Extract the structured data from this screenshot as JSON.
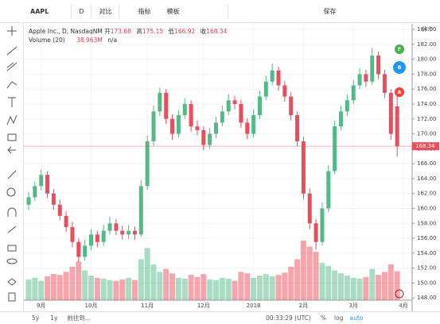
{
  "toolbar": {
    "symbol": "AAPL",
    "interval": "D",
    "compare": "对比",
    "indicators": "指标",
    "templates": "模板",
    "save": "保存"
  },
  "legend": {
    "title": "Apple Inc., D, NasdaqNM",
    "open": "开",
    "high": "高",
    "low": "低",
    "close": "收",
    "volume_name": "Volume (20)",
    "volume_extra": "n/a"
  },
  "axis_status": "休市",
  "markers": [
    "F",
    "B",
    "A"
  ],
  "bottom": {
    "ranges": [
      "5y",
      "1y"
    ],
    "goto": "前往到...",
    "time": "00:33:29 (UTC)",
    "percent": "%",
    "log": "log",
    "auto": "auto"
  },
  "chart_data": {
    "type": "candlestick",
    "up_color": "#53b987",
    "down_color": "#eb4d5c",
    "grid": true,
    "ylim": [
      147.7,
      184.75
    ],
    "yticks": [
      {
        "value": 148,
        "label": "148.00"
      },
      {
        "value": 150,
        "label": "150.00"
      },
      {
        "value": 152,
        "label": "152.00"
      },
      {
        "value": 154,
        "label": "154.00"
      },
      {
        "value": 156,
        "label": "156.00"
      },
      {
        "value": 158,
        "label": "158.00"
      },
      {
        "value": 160,
        "label": "160.00"
      },
      {
        "value": 162,
        "label": "162.00"
      },
      {
        "value": 164,
        "label": "164.00"
      },
      {
        "value": 166,
        "label": "166.00"
      },
      {
        "value": 168,
        "label": "168.00"
      },
      {
        "value": 170,
        "label": "170.00"
      },
      {
        "value": 172,
        "label": "172.00"
      },
      {
        "value": 174,
        "label": "174.00"
      },
      {
        "value": 176,
        "label": "176.00"
      },
      {
        "value": 178,
        "label": "178.00"
      },
      {
        "value": 180,
        "label": "180.00"
      },
      {
        "value": 182,
        "label": "182.00"
      },
      {
        "value": 184,
        "label": "184.00"
      }
    ],
    "xticks": [
      {
        "value": 2,
        "label": "9月"
      },
      {
        "value": 10,
        "label": "10月"
      },
      {
        "value": 19,
        "label": "11月"
      },
      {
        "value": 28,
        "label": "12月"
      },
      {
        "value": 36,
        "label": "2018"
      },
      {
        "value": 44,
        "label": "2月"
      },
      {
        "value": 52,
        "label": "3月"
      },
      {
        "value": 60,
        "label": "4月"
      }
    ],
    "series": [
      {
        "name": "AAPL",
        "values": [
          [
            160.5,
            162.2,
            159.8,
            161.5
          ],
          [
            161.5,
            163.6,
            161,
            163
          ],
          [
            163,
            165.2,
            162.4,
            164.5
          ],
          [
            164.5,
            165,
            161.4,
            162
          ],
          [
            162,
            162.6,
            159.8,
            160.5
          ],
          [
            160.5,
            161.2,
            158.4,
            159
          ],
          [
            159,
            159.6,
            156.8,
            157.5
          ],
          [
            157.5,
            158.2,
            154.8,
            155.5
          ],
          [
            155.5,
            156,
            152.8,
            153.5
          ],
          [
            153.5,
            155.8,
            153,
            155
          ],
          [
            155,
            157.2,
            154.4,
            156.5
          ],
          [
            156.5,
            157,
            154.8,
            155.5
          ],
          [
            155.5,
            157.8,
            155,
            157
          ],
          [
            157,
            158.9,
            156.5,
            158
          ],
          [
            158,
            158.6,
            156.4,
            157
          ],
          [
            157,
            157.7,
            155.8,
            156.5
          ],
          [
            156.5,
            157.8,
            155.9,
            157
          ],
          [
            157,
            157.6,
            155.8,
            156.5
          ],
          [
            156.5,
            163.8,
            156.2,
            163
          ],
          [
            163,
            169.8,
            162.5,
            169
          ],
          [
            169,
            173.8,
            168.4,
            173
          ],
          [
            173,
            176.2,
            172.4,
            175.5
          ],
          [
            175.5,
            176,
            171.3,
            172
          ],
          [
            172,
            172.6,
            169.2,
            170
          ],
          [
            170,
            173.2,
            169.5,
            172.5
          ],
          [
            172.5,
            174.8,
            172,
            174
          ],
          [
            174,
            174.5,
            170.3,
            171
          ],
          [
            171,
            171.8,
            169.8,
            170.5
          ],
          [
            170.5,
            171,
            167.8,
            168.5
          ],
          [
            168.5,
            170.8,
            168,
            170
          ],
          [
            170,
            172.3,
            169.4,
            171.5
          ],
          [
            171.5,
            173.8,
            171,
            173
          ],
          [
            173,
            175.3,
            172.5,
            174.5
          ],
          [
            174.5,
            175.1,
            173.3,
            174
          ],
          [
            174,
            174.6,
            170.8,
            171.5
          ],
          [
            171.5,
            172.1,
            169.3,
            170
          ],
          [
            170,
            173.3,
            169.5,
            172.5
          ],
          [
            172.5,
            175.8,
            172,
            175
          ],
          [
            175,
            177.8,
            174.5,
            177
          ],
          [
            177,
            179.4,
            176.5,
            178.5
          ],
          [
            178.5,
            179,
            175.8,
            176.5
          ],
          [
            176.5,
            177.1,
            174.3,
            175
          ],
          [
            175,
            175.6,
            171.8,
            172.5
          ],
          [
            172.5,
            173,
            168.3,
            169
          ],
          [
            169,
            169.6,
            161.2,
            162
          ],
          [
            162,
            162.7,
            157.2,
            158
          ],
          [
            158,
            158.6,
            154.5,
            155.5
          ],
          [
            155.5,
            160.8,
            155,
            160
          ],
          [
            160,
            165.8,
            159.5,
            165
          ],
          [
            165,
            171.8,
            164.6,
            171
          ],
          [
            171,
            173.8,
            170.5,
            173
          ],
          [
            173,
            175.3,
            172.4,
            174.5
          ],
          [
            174.5,
            177.2,
            174,
            176.5
          ],
          [
            176.5,
            178.8,
            176,
            178
          ],
          [
            178,
            178.6,
            176.3,
            177
          ],
          [
            177,
            181.5,
            176.6,
            180.5
          ],
          [
            180.5,
            181,
            177.3,
            178
          ],
          [
            178,
            178.6,
            174.8,
            175.5
          ],
          [
            175.5,
            176,
            169.2,
            170
          ],
          [
            173.68,
            175.15,
            166.92,
            168.34
          ]
        ]
      }
    ],
    "volume": {
      "name": "Volume (20)",
      "values": [
        28,
        30,
        26,
        32,
        35,
        34,
        38,
        45,
        52,
        40,
        33,
        30,
        29,
        27,
        26,
        28,
        30,
        27,
        55,
        70,
        48,
        38,
        42,
        36,
        30,
        29,
        34,
        31,
        35,
        28,
        27,
        30,
        29,
        26,
        38,
        36,
        30,
        33,
        35,
        32,
        34,
        37,
        45,
        55,
        80,
        72,
        65,
        50,
        46,
        40,
        36,
        33,
        30,
        29,
        31,
        42,
        34,
        38,
        48,
        38.963
      ],
      "value_labels": [
        null,
        null,
        null,
        null,
        null,
        null,
        null,
        null,
        null,
        null,
        null,
        null,
        null,
        null,
        null,
        null,
        null,
        null,
        null,
        null,
        null,
        null,
        null,
        null,
        null,
        null,
        null,
        null,
        null,
        null,
        null,
        null,
        null,
        null,
        null,
        null,
        null,
        null,
        null,
        null,
        null,
        null,
        null,
        null,
        null,
        null,
        null,
        null,
        null,
        null,
        null,
        null,
        null,
        null,
        null,
        null,
        null,
        null,
        null,
        "38.963M"
      ]
    }
  }
}
